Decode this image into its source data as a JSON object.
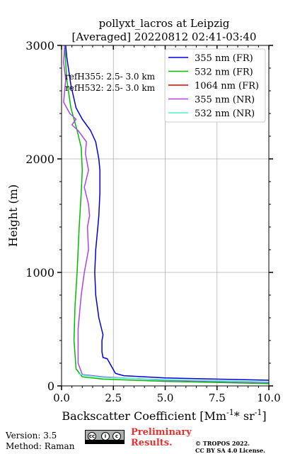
{
  "chart_data": {
    "type": "line",
    "title": "pollyxt_lacros at Leipzig",
    "subtitle": "[Averaged] 20220812 02:41-03:40",
    "xlabel": "Backscatter Coefficient [Mm",
    "xlabel_sup1": "-1",
    "xlabel_mid": "* sr",
    "xlabel_sup2": "-1",
    "xlabel_end": "]",
    "ylabel": "Height (m)",
    "xlim": [
      0,
      10
    ],
    "ylim": [
      0,
      3000
    ],
    "xticks": [
      "0.0",
      "2.5",
      "5.0",
      "7.5",
      "10.0"
    ],
    "xtick_values": [
      0,
      2.5,
      5,
      7.5,
      10
    ],
    "yticks": [
      "0",
      "1000",
      "2000",
      "3000"
    ],
    "ytick_values": [
      0,
      1000,
      2000,
      3000
    ],
    "grid": true,
    "legend_position": "top-right",
    "annotations": [
      "refH355:  2.5- 3.0 km",
      "refH532:  2.5- 3.0 km"
    ],
    "series": [
      {
        "name": "355 nm (FR)",
        "color": "#0000dd",
        "points": [
          [
            10.0,
            50
          ],
          [
            5.0,
            70
          ],
          [
            3.0,
            90
          ],
          [
            2.6,
            110
          ],
          [
            2.2,
            240
          ],
          [
            2.0,
            250
          ],
          [
            1.95,
            300
          ],
          [
            1.95,
            400
          ],
          [
            2.0,
            450
          ],
          [
            1.8,
            600
          ],
          [
            1.65,
            800
          ],
          [
            1.6,
            1000
          ],
          [
            1.65,
            1200
          ],
          [
            1.75,
            1400
          ],
          [
            1.8,
            1500
          ],
          [
            1.85,
            1700
          ],
          [
            1.85,
            1900
          ],
          [
            1.8,
            2000
          ],
          [
            1.65,
            2150
          ],
          [
            1.4,
            2250
          ],
          [
            1.0,
            2350
          ],
          [
            0.7,
            2450
          ],
          [
            0.45,
            2650
          ],
          [
            0.25,
            2900
          ],
          [
            0.2,
            3000
          ]
        ]
      },
      {
        "name": "532 nm (FR)",
        "color": "#00bb00",
        "points": [
          [
            10.0,
            20
          ],
          [
            5.0,
            40
          ],
          [
            2.0,
            60
          ],
          [
            1.0,
            80
          ],
          [
            0.7,
            150
          ],
          [
            0.6,
            400
          ],
          [
            0.65,
            700
          ],
          [
            0.75,
            1000
          ],
          [
            0.85,
            1400
          ],
          [
            0.95,
            1700
          ],
          [
            1.0,
            1900
          ],
          [
            0.95,
            2100
          ],
          [
            0.75,
            2250
          ],
          [
            0.45,
            2450
          ],
          [
            0.25,
            2700
          ],
          [
            0.15,
            3000
          ]
        ]
      },
      {
        "name": "1064 nm (FR)",
        "color": "#dd0000",
        "points": []
      },
      {
        "name": "355 nm (NR)",
        "color": "#aa44ee",
        "points": [
          [
            10.0,
            30
          ],
          [
            5.0,
            50
          ],
          [
            2.0,
            80
          ],
          [
            1.0,
            100
          ],
          [
            0.8,
            200
          ],
          [
            0.8,
            500
          ],
          [
            0.95,
            800
          ],
          [
            1.1,
            1000
          ],
          [
            1.3,
            1200
          ],
          [
            1.25,
            1400
          ],
          [
            1.35,
            1500
          ],
          [
            1.3,
            1600
          ],
          [
            1.1,
            1750
          ],
          [
            1.3,
            1900
          ],
          [
            1.15,
            2050
          ],
          [
            1.2,
            2150
          ],
          [
            0.8,
            2250
          ],
          [
            0.5,
            2300
          ],
          [
            0.7,
            2350
          ],
          [
            0.4,
            2400
          ],
          [
            0.1,
            2500
          ],
          [
            0.2,
            2700
          ],
          [
            0.1,
            2850
          ],
          [
            0.15,
            3000
          ]
        ]
      },
      {
        "name": "532 nm (NR)",
        "color": "#55eecc",
        "points": [
          [
            10.0,
            35
          ],
          [
            5.0,
            55
          ],
          [
            2.0,
            75
          ],
          [
            1.0,
            95
          ],
          [
            0.8,
            110
          ]
        ]
      }
    ]
  },
  "footer": {
    "version": "Version: 3.5",
    "method": "Method: Raman",
    "preliminary": "Preliminary Results.",
    "copyright_line1": "© TROPOS 2022.",
    "copyright_line2": "CC BY SA 4.0 License."
  }
}
